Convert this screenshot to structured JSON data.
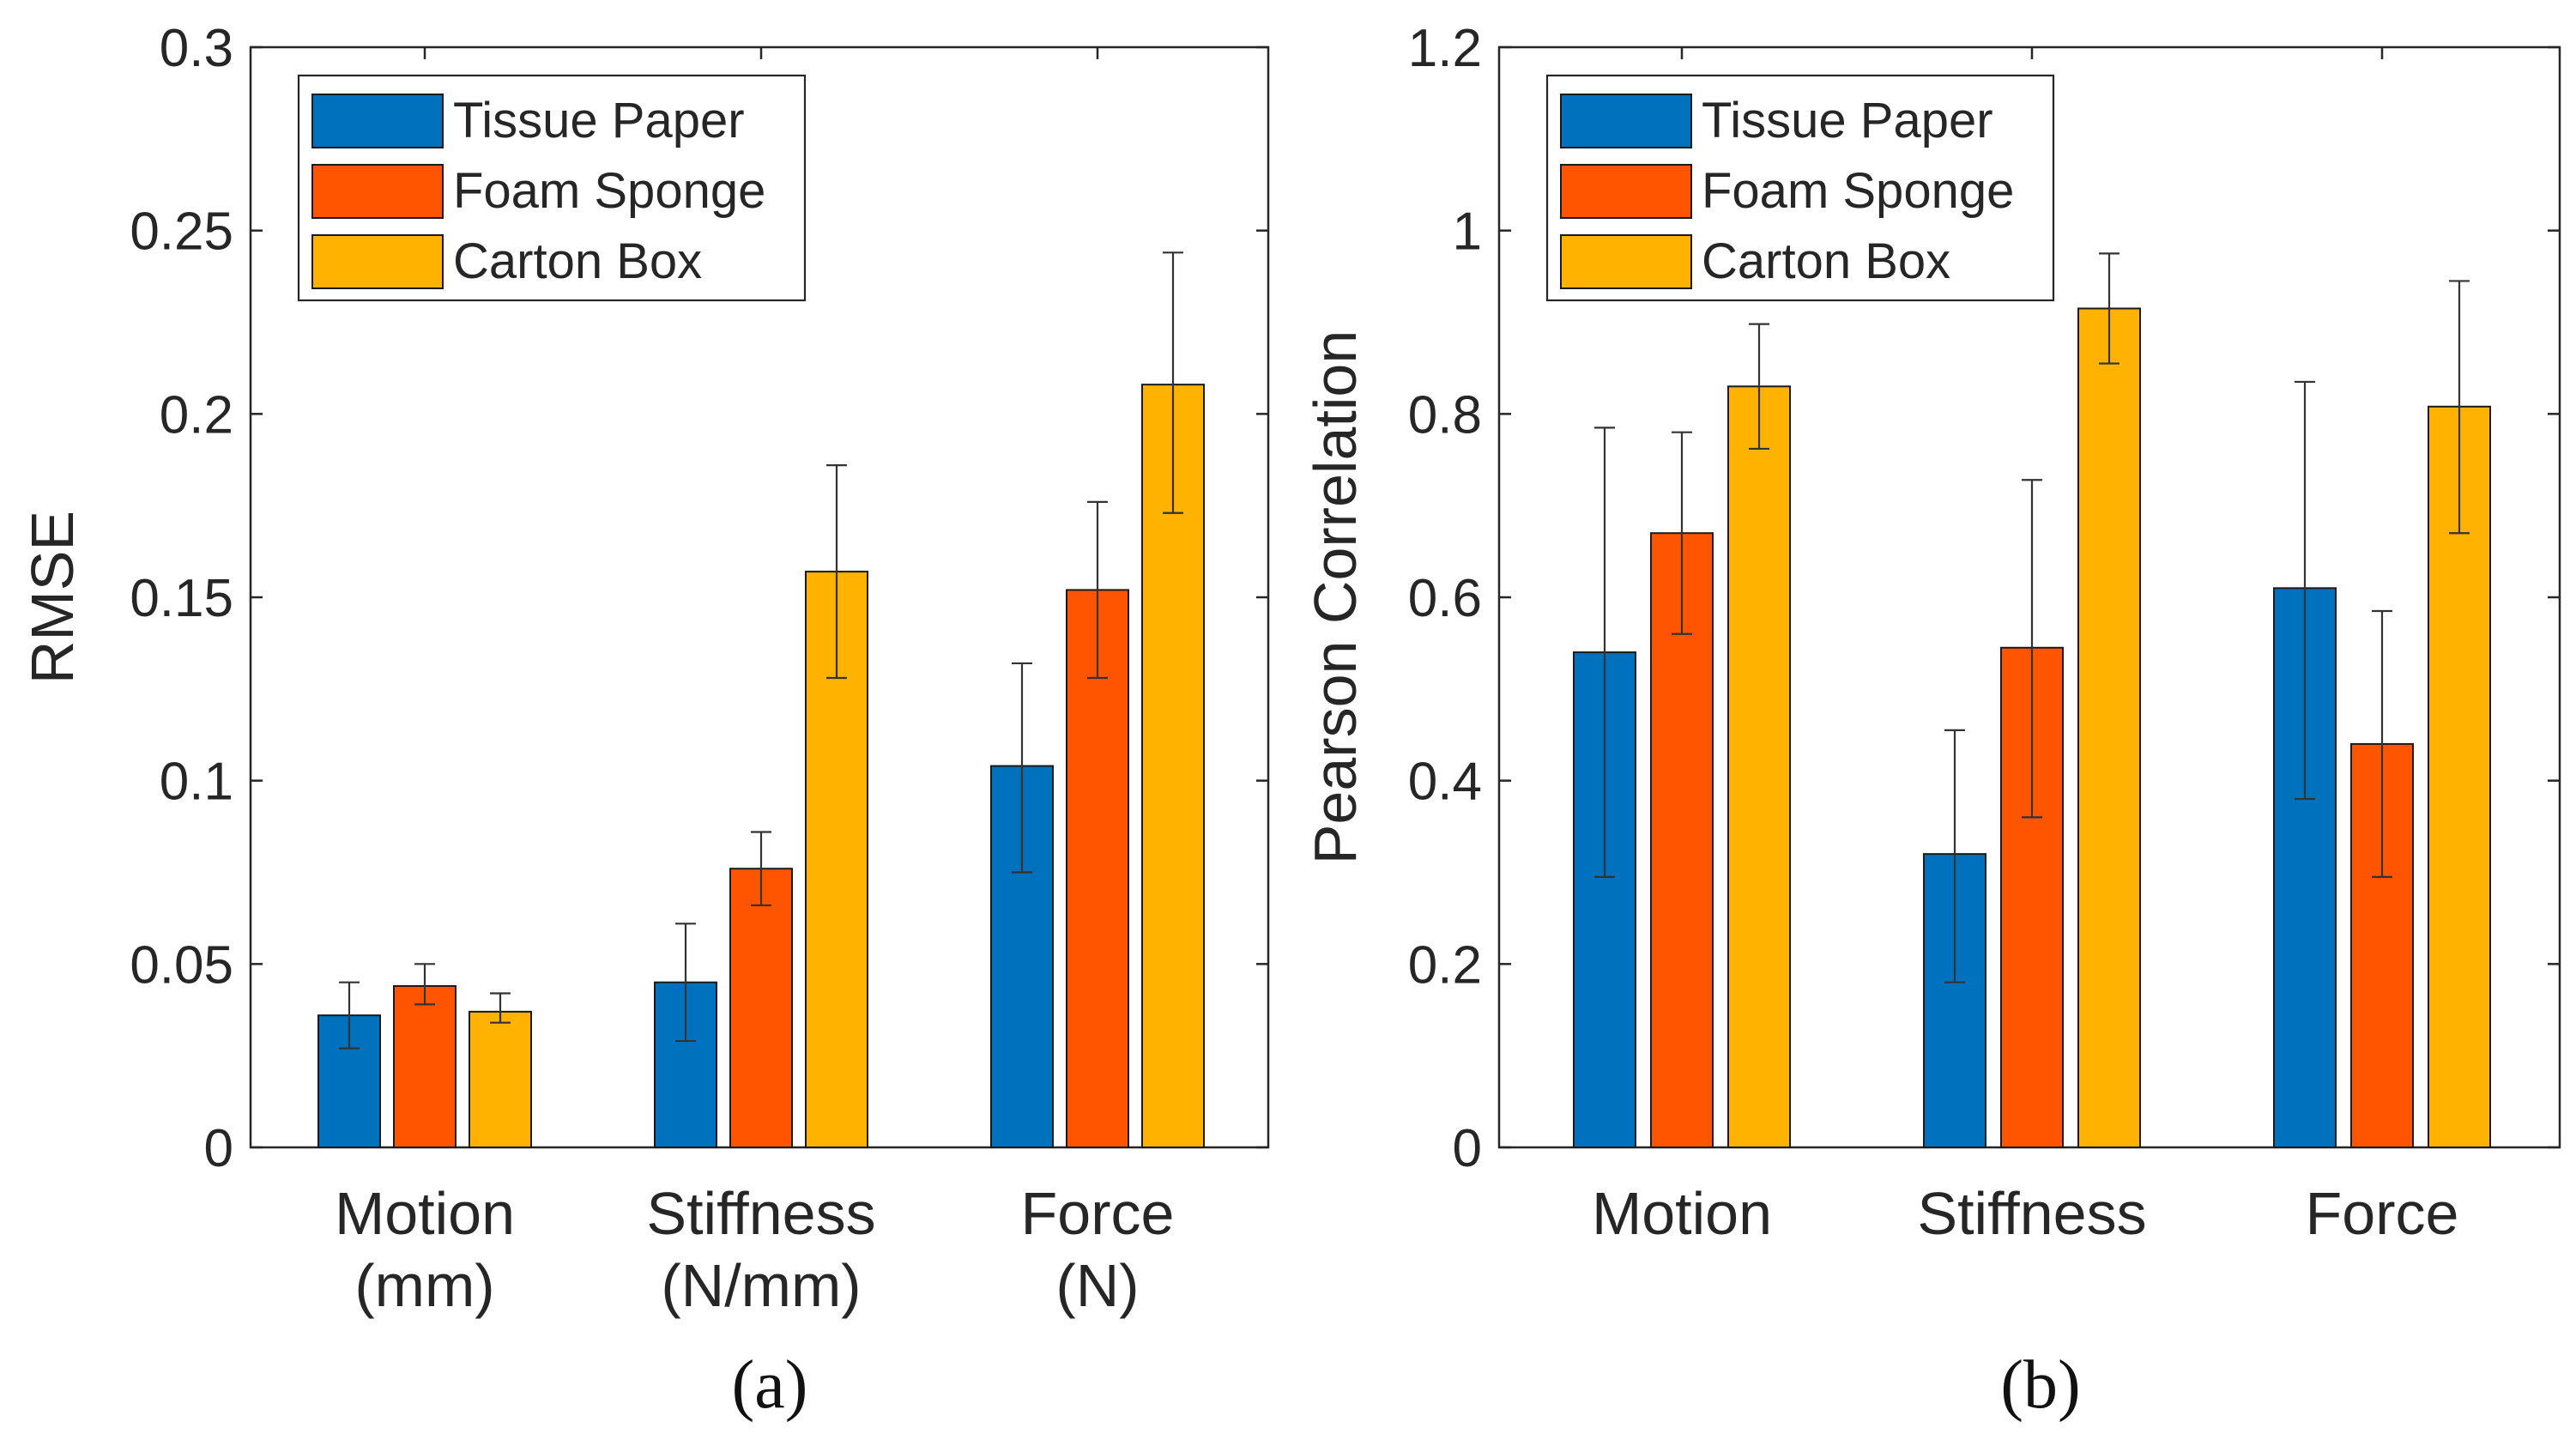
{
  "chart_data": [
    {
      "type": "bar",
      "panel": "(a)",
      "title": "",
      "ylabel": "RMSE",
      "xlabel": "",
      "ylim": [
        0,
        0.3
      ],
      "yticks": [
        0,
        0.05,
        0.1,
        0.15,
        0.2,
        0.25,
        0.3
      ],
      "ytick_labels": [
        "0",
        "0.05",
        "0.1",
        "0.15",
        "0.2",
        "0.25",
        "0.3"
      ],
      "categories": [
        {
          "line1": "Motion",
          "line2": "(mm)"
        },
        {
          "line1": "Stiffness",
          "line2": "(N/mm)"
        },
        {
          "line1": "Force",
          "line2": "(N)"
        }
      ],
      "series": [
        {
          "name": "Tissue Paper",
          "color": "#0072BD",
          "values": [
            0.036,
            0.045,
            0.104
          ],
          "err_low": [
            0.027,
            0.029,
            0.075
          ],
          "err_high": [
            0.045,
            0.061,
            0.132
          ]
        },
        {
          "name": "Foam Sponge",
          "color": "#FF5500",
          "values": [
            0.044,
            0.076,
            0.152
          ],
          "err_low": [
            0.039,
            0.066,
            0.128
          ],
          "err_high": [
            0.05,
            0.086,
            0.176
          ]
        },
        {
          "name": "Carton Box",
          "color": "#FFB300",
          "values": [
            0.037,
            0.157,
            0.208
          ],
          "err_low": [
            0.034,
            0.128,
            0.173
          ],
          "err_high": [
            0.042,
            0.186,
            0.244
          ]
        }
      ],
      "legend": "top-left"
    },
    {
      "type": "bar",
      "panel": "(b)",
      "title": "",
      "ylabel": "Pearson Correlation",
      "xlabel": "",
      "ylim": [
        0,
        1.2
      ],
      "yticks": [
        0,
        0.2,
        0.4,
        0.6,
        0.8,
        1,
        1.2
      ],
      "ytick_labels": [
        "0",
        "0.2",
        "0.4",
        "0.6",
        "0.8",
        "1",
        "1.2"
      ],
      "categories": [
        {
          "line1": "Motion",
          "line2": ""
        },
        {
          "line1": "Stiffness",
          "line2": ""
        },
        {
          "line1": "Force",
          "line2": ""
        }
      ],
      "series": [
        {
          "name": "Tissue Paper",
          "color": "#0072BD",
          "values": [
            0.54,
            0.32,
            0.61
          ],
          "err_low": [
            0.295,
            0.18,
            0.38
          ],
          "err_high": [
            0.785,
            0.455,
            0.835
          ]
        },
        {
          "name": "Foam Sponge",
          "color": "#FF5500",
          "values": [
            0.67,
            0.545,
            0.44
          ],
          "err_low": [
            0.56,
            0.36,
            0.295
          ],
          "err_high": [
            0.78,
            0.728,
            0.585
          ]
        },
        {
          "name": "Carton Box",
          "color": "#FFB300",
          "values": [
            0.83,
            0.915,
            0.808
          ],
          "err_low": [
            0.762,
            0.855,
            0.67
          ],
          "err_high": [
            0.898,
            0.975,
            0.945
          ]
        }
      ],
      "legend": "top-left"
    }
  ]
}
